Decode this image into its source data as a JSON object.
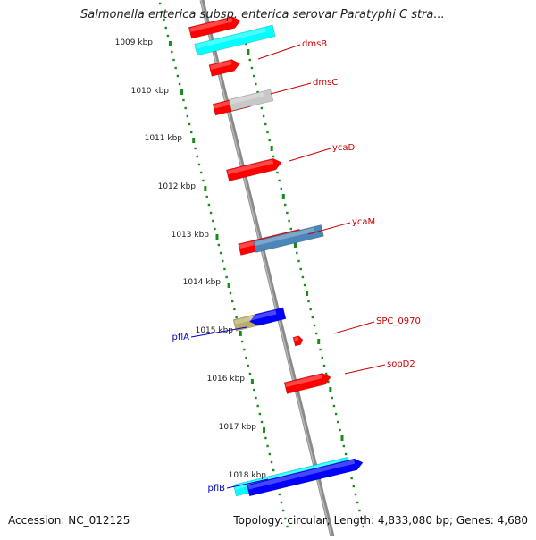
{
  "title": "Salmonella enterica subsp. enterica serovar Paratyphi C stra...",
  "accession": "Accession: NC_012125",
  "topology": "Topology: circular; Length: 4,833,080 bp; Genes: 4,680",
  "colors": {
    "red": "#ff0000",
    "cyan": "#00ffff",
    "gray": "#c8c8c8",
    "steel": "#4a86b8",
    "olive": "#b8ae68",
    "blue": "#0000ff",
    "tick_green": "#1a8a1a",
    "label_red": "#cc0000",
    "label_blue": "#0000cc"
  },
  "kbp_ticks": [
    {
      "label": "1009 kbp",
      "kbp": 1009
    },
    {
      "label": "1010 kbp",
      "kbp": 1010
    },
    {
      "label": "1011 kbp",
      "kbp": 1011
    },
    {
      "label": "1012 kbp",
      "kbp": 1012
    },
    {
      "label": "1013 kbp",
      "kbp": 1013
    },
    {
      "label": "1014 kbp",
      "kbp": 1014
    },
    {
      "label": "1015 kbp",
      "kbp": 1015
    },
    {
      "label": "1016 kbp",
      "kbp": 1016
    },
    {
      "label": "1017 kbp",
      "kbp": 1017
    },
    {
      "label": "1018 kbp",
      "kbp": 1018
    }
  ],
  "gene_labels": [
    {
      "name": "dmsB",
      "color": "label_red"
    },
    {
      "name": "dmsC",
      "color": "label_red"
    },
    {
      "name": "ycaD",
      "color": "label_red"
    },
    {
      "name": "ycaM",
      "color": "label_red"
    },
    {
      "name": "SPC_0970",
      "color": "label_red"
    },
    {
      "name": "sopD2",
      "color": "label_red"
    },
    {
      "name": "pflA",
      "color": "label_blue"
    },
    {
      "name": "pflB",
      "color": "label_blue"
    }
  ]
}
